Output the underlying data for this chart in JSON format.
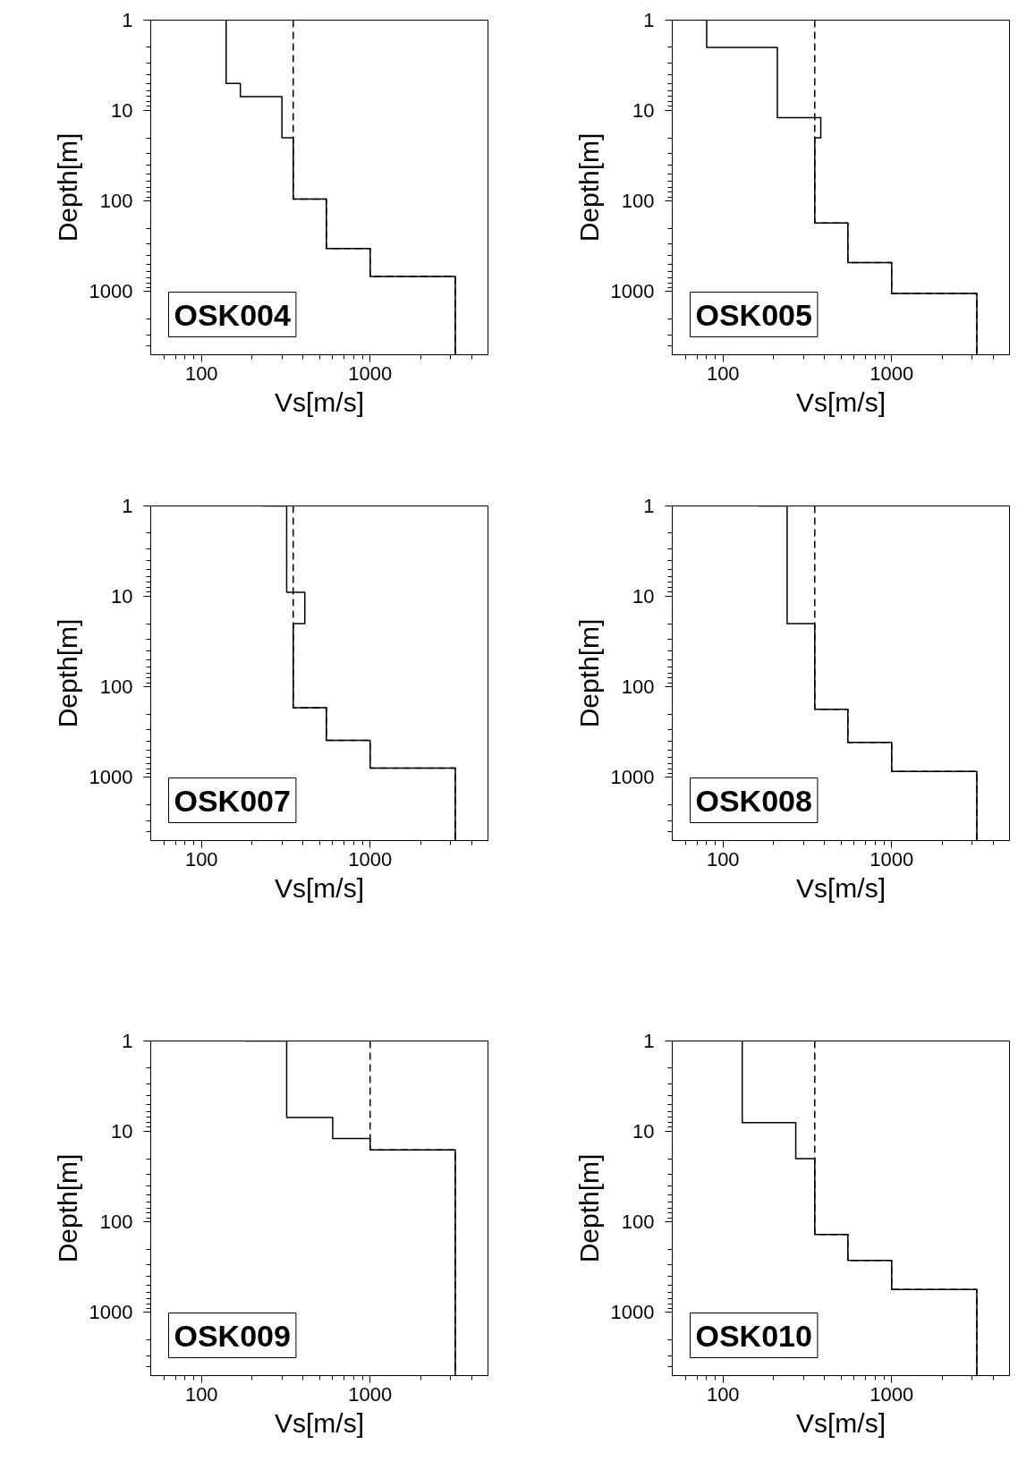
{
  "chart_data": [
    {
      "type": "line",
      "xlabel": "Vs[m/s]",
      "ylabel": "Depth[m]",
      "log": "xy",
      "xlim": [
        50,
        5000
      ],
      "ylim": [
        5000,
        1
      ],
      "xticks": [
        100,
        1000
      ],
      "yticks": [
        1,
        10,
        100,
        1000
      ],
      "annotations": [
        "OSK004"
      ],
      "series": [
        {
          "color": "#000000",
          "line_style": "solid",
          "x": [
            140,
            140,
            170,
            170,
            300,
            300,
            350,
            350,
            550,
            550,
            1000,
            1000,
            3200,
            3200
          ],
          "values": [
            1,
            5,
            5,
            7,
            7,
            20,
            20,
            95,
            95,
            335,
            335,
            680,
            680,
            5000
          ]
        },
        {
          "color": "#000000",
          "line_style": "dashed",
          "x": [
            350,
            350,
            550,
            550,
            1000,
            1000,
            3200,
            3200
          ],
          "values": [
            1,
            95,
            95,
            335,
            335,
            680,
            680,
            5000
          ]
        }
      ]
    },
    {
      "type": "line",
      "xlabel": "Vs[m/s]",
      "ylabel": "Depth[m]",
      "log": "xy",
      "xlim": [
        50,
        5000
      ],
      "ylim": [
        5000,
        1
      ],
      "xticks": [
        100,
        1000
      ],
      "yticks": [
        1,
        10,
        100,
        1000
      ],
      "annotations": [
        "OSK005"
      ],
      "series": [
        {
          "color": "#000000",
          "line_style": "solid",
          "x": [
            80,
            80,
            210,
            210,
            380,
            380,
            350,
            350,
            550,
            550,
            1000,
            1000,
            3200,
            3200
          ],
          "values": [
            1,
            2,
            2,
            12,
            12,
            20,
            20,
            175,
            175,
            480,
            480,
            1050,
            1050,
            5000
          ]
        },
        {
          "color": "#000000",
          "line_style": "dashed",
          "x": [
            350,
            350,
            550,
            550,
            1000,
            1000,
            3200,
            3200
          ],
          "values": [
            1,
            175,
            175,
            480,
            480,
            1050,
            1050,
            5000
          ]
        }
      ]
    },
    {
      "type": "line",
      "xlabel": "Vs[m/s]",
      "ylabel": "Depth[m]",
      "log": "xy",
      "xlim": [
        50,
        5000
      ],
      "ylim": [
        5000,
        1
      ],
      "xticks": [
        100,
        1000
      ],
      "yticks": [
        1,
        10,
        100,
        1000
      ],
      "annotations": [
        "OSK007"
      ],
      "series": [
        {
          "color": "#000000",
          "line_style": "solid",
          "x": [
            230,
            320,
            320,
            410,
            410,
            350,
            350,
            550,
            550,
            1000,
            1000,
            3200,
            3200
          ],
          "values": [
            1,
            1,
            9,
            9,
            20,
            20,
            170,
            170,
            390,
            390,
            790,
            790,
            5000
          ]
        },
        {
          "color": "#000000",
          "line_style": "dashed",
          "x": [
            350,
            350,
            550,
            550,
            1000,
            1000,
            3200,
            3200
          ],
          "values": [
            1,
            170,
            170,
            390,
            390,
            790,
            790,
            5000
          ]
        }
      ]
    },
    {
      "type": "line",
      "xlabel": "Vs[m/s]",
      "ylabel": "Depth[m]",
      "log": "xy",
      "xlim": [
        50,
        5000
      ],
      "ylim": [
        5000,
        1
      ],
      "xticks": [
        100,
        1000
      ],
      "yticks": [
        1,
        10,
        100,
        1000
      ],
      "annotations": [
        "OSK008"
      ],
      "series": [
        {
          "color": "#000000",
          "line_style": "solid",
          "x": [
            160,
            240,
            240,
            350,
            350,
            550,
            550,
            1000,
            1000,
            3200,
            3200
          ],
          "values": [
            1,
            1,
            20,
            20,
            177,
            177,
            410,
            410,
            860,
            860,
            5000
          ]
        },
        {
          "color": "#000000",
          "line_style": "dashed",
          "x": [
            350,
            350,
            550,
            550,
            1000,
            1000,
            3200,
            3200
          ],
          "values": [
            1,
            177,
            177,
            410,
            410,
            860,
            860,
            5000
          ]
        }
      ]
    },
    {
      "type": "line",
      "xlabel": "Vs[m/s]",
      "ylabel": "Depth[m]",
      "log": "xy",
      "xlim": [
        50,
        5000
      ],
      "ylim": [
        5000,
        1
      ],
      "xticks": [
        100,
        1000
      ],
      "yticks": [
        1,
        10,
        100,
        1000
      ],
      "annotations": [
        "OSK009"
      ],
      "series": [
        {
          "color": "#000000",
          "line_style": "solid",
          "x": [
            180,
            320,
            320,
            600,
            600,
            1000,
            1000,
            3200,
            3200
          ],
          "values": [
            1,
            1,
            7,
            7,
            12,
            12,
            16,
            16,
            5000
          ]
        },
        {
          "color": "#000000",
          "line_style": "dashed",
          "x": [
            1000,
            1000,
            3200,
            3200
          ],
          "values": [
            1,
            16,
            16,
            5000
          ]
        }
      ]
    },
    {
      "type": "line",
      "xlabel": "Vs[m/s]",
      "ylabel": "Depth[m]",
      "log": "xy",
      "xlim": [
        50,
        5000
      ],
      "ylim": [
        5000,
        1
      ],
      "xticks": [
        100,
        1000
      ],
      "yticks": [
        1,
        10,
        100,
        1000
      ],
      "annotations": [
        "OSK010"
      ],
      "series": [
        {
          "color": "#000000",
          "line_style": "solid",
          "x": [
            130,
            130,
            270,
            270,
            350,
            350,
            550,
            550,
            1000,
            1000,
            3200,
            3200
          ],
          "values": [
            1,
            8,
            8,
            20,
            20,
            138,
            138,
            266,
            266,
            560,
            560,
            5000
          ]
        },
        {
          "color": "#000000",
          "line_style": "dashed",
          "x": [
            350,
            350,
            550,
            550,
            1000,
            1000,
            3200,
            3200
          ],
          "values": [
            1,
            138,
            138,
            266,
            266,
            560,
            560,
            5000
          ]
        }
      ]
    }
  ]
}
